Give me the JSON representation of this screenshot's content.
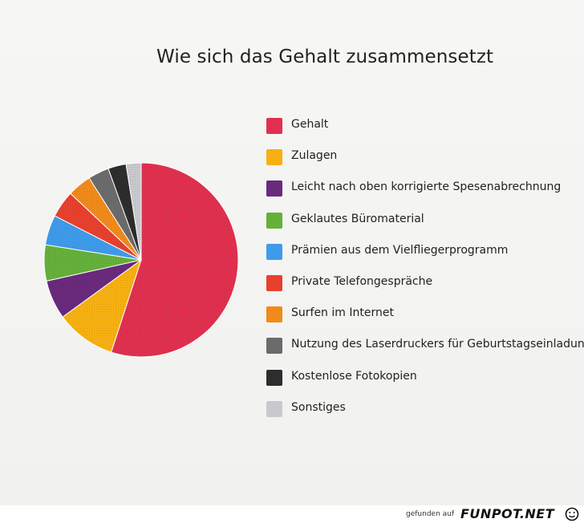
{
  "chart_data": {
    "type": "pie",
    "title": "Wie sich das Gehalt zusammensetzt",
    "legend_position": "right",
    "slices": [
      {
        "label": "Gehalt",
        "value": 55,
        "color": "#e0304f"
      },
      {
        "label": "Zulagen",
        "value": 10,
        "color": "#f7b011"
      },
      {
        "label": "Leicht nach oben korrigierte Spesenabrechnung",
        "value": 6.5,
        "color": "#6a2a7c"
      },
      {
        "label": "Geklautes Büromaterial",
        "value": 6,
        "color": "#64b03a"
      },
      {
        "label": "Prämien aus dem Vielfliegerprogramm",
        "value": 5,
        "color": "#3e9be9"
      },
      {
        "label": "Private Telefongespräche",
        "value": 4.5,
        "color": "#e8402e"
      },
      {
        "label": "Surfen im Internet",
        "value": 4,
        "color": "#f08a1a"
      },
      {
        "label": "Nutzung des Laserdruckers für Geburtstagseinladungen",
        "value": 3.5,
        "color": "#6b6b6b"
      },
      {
        "label": "Kostenlose Fotokopien",
        "value": 3,
        "color": "#2d2d2d"
      },
      {
        "label": "Sonstiges",
        "value": 2.5,
        "color": "#c9c9cd"
      }
    ]
  },
  "footer": {
    "prefix": "gefunden auf",
    "brand": "FUNPOT.NET"
  }
}
